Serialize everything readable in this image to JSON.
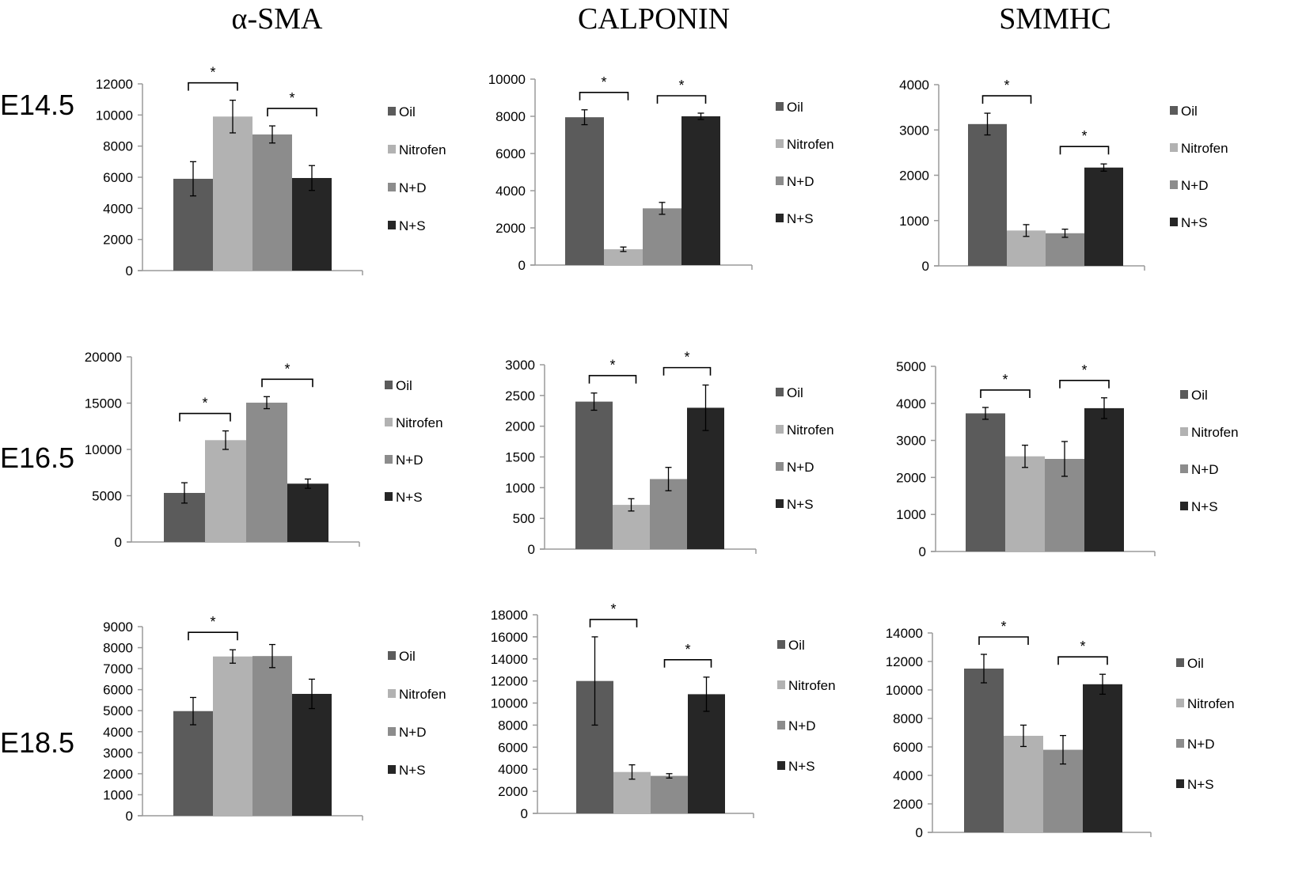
{
  "columns": [
    "α-SMA",
    "CALPONIN",
    "SMMHC"
  ],
  "rows": [
    "E14.5",
    "E16.5",
    "E18.5"
  ],
  "colors": {
    "Oil": "#5b5b5b",
    "Nitrofen": "#b2b2b2",
    "N+D": "#8c8c8c",
    "N+S": "#262626"
  },
  "chart_data": [
    {
      "type": "bar",
      "panel": "α-SMA E14.5",
      "categories": [
        "Oil",
        "Nitrofen",
        "N+D",
        "N+S"
      ],
      "values": [
        5900,
        9900,
        8750,
        5950
      ],
      "errors": [
        1100,
        1050,
        550,
        800
      ],
      "ylim": [
        0,
        12000
      ],
      "yticks": [
        0,
        2000,
        4000,
        6000,
        8000,
        10000,
        12000
      ],
      "legend": [
        "Oil",
        "Nitrofen",
        "N+D",
        "N+S"
      ],
      "annotations": [
        {
          "from": 0,
          "to": 1,
          "label": "*"
        },
        {
          "from": 2,
          "to": 3,
          "label": "*"
        }
      ]
    },
    {
      "type": "bar",
      "panel": "CALPONIN E14.5",
      "categories": [
        "Oil",
        "Nitrofen",
        "N+D",
        "N+S"
      ],
      "values": [
        7950,
        850,
        3050,
        8000
      ],
      "errors": [
        400,
        120,
        320,
        170
      ],
      "ylim": [
        0,
        10000
      ],
      "yticks": [
        0,
        2000,
        4000,
        6000,
        8000,
        10000
      ],
      "legend": [
        "Oil",
        "Nitrofen",
        "N+D",
        "N+S"
      ],
      "annotations": [
        {
          "from": 0,
          "to": 1,
          "label": "*"
        },
        {
          "from": 2,
          "to": 3,
          "label": "*"
        }
      ]
    },
    {
      "type": "bar",
      "panel": "SMMHC E14.5",
      "categories": [
        "Oil",
        "Nitrofen",
        "N+D",
        "N+S"
      ],
      "values": [
        3130,
        780,
        720,
        2170
      ],
      "errors": [
        240,
        130,
        90,
        80
      ],
      "ylim": [
        0,
        4000
      ],
      "yticks": [
        0,
        1000,
        2000,
        3000,
        4000
      ],
      "legend": [
        "Oil",
        "Nitrofen",
        "N+D",
        "N+S"
      ],
      "annotations": [
        {
          "from": 0,
          "to": 1,
          "label": "*"
        },
        {
          "from": 2,
          "to": 3,
          "label": "*"
        }
      ]
    },
    {
      "type": "bar",
      "panel": "α-SMA E16.5",
      "categories": [
        "Oil",
        "Nitrofen",
        "N+D",
        "N+S"
      ],
      "values": [
        5300,
        11000,
        15050,
        6300
      ],
      "errors": [
        1100,
        1000,
        650,
        500
      ],
      "ylim": [
        0,
        20000
      ],
      "yticks": [
        0,
        5000,
        10000,
        15000,
        20000
      ],
      "legend": [
        "Oil",
        "Nitrofen",
        "N+D",
        "N+S"
      ],
      "annotations": [
        {
          "from": 0,
          "to": 1,
          "label": "*"
        },
        {
          "from": 2,
          "to": 3,
          "label": "*"
        }
      ]
    },
    {
      "type": "bar",
      "panel": "CALPONIN E16.5",
      "categories": [
        "Oil",
        "Nitrofen",
        "N+D",
        "N+S"
      ],
      "values": [
        2400,
        720,
        1140,
        2300
      ],
      "errors": [
        140,
        100,
        190,
        370
      ],
      "ylim": [
        0,
        3000
      ],
      "yticks": [
        0,
        500,
        1000,
        1500,
        2000,
        2500,
        3000
      ],
      "legend": [
        "Oil",
        "Nitrofen",
        "N+D",
        "N+S"
      ],
      "annotations": [
        {
          "from": 0,
          "to": 1,
          "label": "*"
        },
        {
          "from": 2,
          "to": 3,
          "label": "*"
        }
      ]
    },
    {
      "type": "bar",
      "panel": "SMMHC E16.5",
      "categories": [
        "Oil",
        "Nitrofen",
        "N+D",
        "N+S"
      ],
      "values": [
        3730,
        2570,
        2500,
        3870
      ],
      "errors": [
        160,
        300,
        470,
        280
      ],
      "ylim": [
        0,
        5000
      ],
      "yticks": [
        0,
        1000,
        2000,
        3000,
        4000,
        5000
      ],
      "legend": [
        "Oil",
        "Nitrofen",
        "N+D",
        "N+S"
      ],
      "annotations": [
        {
          "from": 0,
          "to": 1,
          "label": "*"
        },
        {
          "from": 2,
          "to": 3,
          "label": "*"
        }
      ]
    },
    {
      "type": "bar",
      "panel": "α-SMA E18.5",
      "categories": [
        "Oil",
        "Nitrofen",
        "N+D",
        "N+S"
      ],
      "values": [
        4980,
        7580,
        7600,
        5800
      ],
      "errors": [
        650,
        320,
        550,
        700
      ],
      "ylim": [
        0,
        9000
      ],
      "yticks": [
        0,
        1000,
        2000,
        3000,
        4000,
        5000,
        6000,
        7000,
        8000,
        9000
      ],
      "legend": [
        "Oil",
        "Nitrofen",
        "N+D",
        "N+S"
      ],
      "annotations": [
        {
          "from": 0,
          "to": 1,
          "label": "*"
        }
      ]
    },
    {
      "type": "bar",
      "panel": "CALPONIN E18.5",
      "categories": [
        "Oil",
        "Nitrofen",
        "N+D",
        "N+S"
      ],
      "values": [
        12000,
        3750,
        3400,
        10800
      ],
      "errors": [
        4000,
        650,
        200,
        1550
      ],
      "ylim": [
        0,
        18000
      ],
      "yticks": [
        0,
        2000,
        4000,
        6000,
        8000,
        10000,
        12000,
        14000,
        16000,
        18000
      ],
      "legend": [
        "Oil",
        "Nitrofen",
        "N+D",
        "N+S"
      ],
      "annotations": [
        {
          "from": 0,
          "to": 1,
          "label": "*"
        },
        {
          "from": 2,
          "to": 3,
          "label": "*"
        }
      ]
    },
    {
      "type": "bar",
      "panel": "SMMHC E18.5",
      "categories": [
        "Oil",
        "Nitrofen",
        "N+D",
        "N+S"
      ],
      "values": [
        11500,
        6780,
        5800,
        10400
      ],
      "errors": [
        1000,
        750,
        1000,
        700
      ],
      "ylim": [
        0,
        14000
      ],
      "yticks": [
        0,
        2000,
        4000,
        6000,
        8000,
        10000,
        12000,
        14000
      ],
      "legend": [
        "Oil",
        "Nitrofen",
        "N+D",
        "N+S"
      ],
      "annotations": [
        {
          "from": 0,
          "to": 1,
          "label": "*"
        },
        {
          "from": 2,
          "to": 3,
          "label": "*"
        }
      ]
    }
  ]
}
